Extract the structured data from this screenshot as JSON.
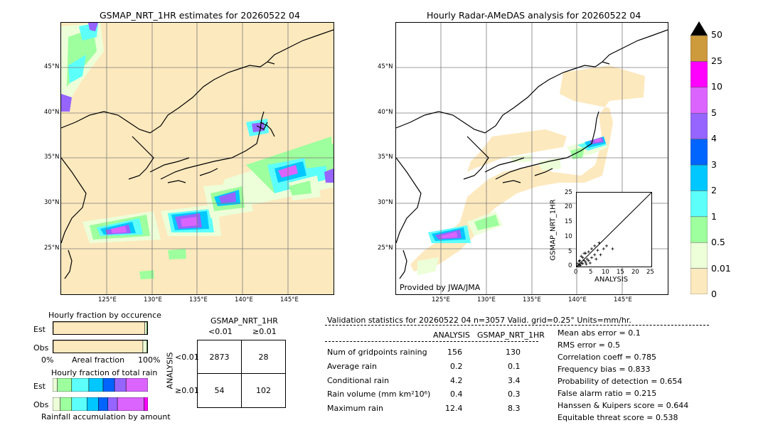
{
  "left_map": {
    "title": "GSMAP_NRT_1HR estimates for 20260522 04",
    "lat_labels": [
      "45°N",
      "40°N",
      "35°N",
      "30°N",
      "25°N"
    ],
    "lon_labels": [
      "125°E",
      "130°E",
      "135°E",
      "140°E",
      "145°E"
    ]
  },
  "right_map": {
    "title": "Hourly Radar-AMeDAS analysis for 20260522 04",
    "lat_labels": [
      "45°N",
      "40°N",
      "35°N",
      "30°N",
      "25°N"
    ],
    "lon_labels": [
      "125°E",
      "130°E",
      "135°E",
      "140°E",
      "145°E"
    ],
    "credit": "Provided by JWA/JMA"
  },
  "scatter_inset": {
    "xlabel": "ANALYSIS",
    "ylabel": "GSMAP_NRT_1HR",
    "ticks": [
      "0",
      "5",
      "10",
      "15",
      "20",
      "25"
    ]
  },
  "colorbar": {
    "levels": [
      "0",
      "0.01",
      "0.5",
      "1",
      "2",
      "3",
      "4",
      "5",
      "10",
      "25",
      "50"
    ],
    "colors": [
      "#fde9be",
      "#ecffd8",
      "#9dff9d",
      "#5dfffb",
      "#00c7ff",
      "#0064ff",
      "#9664ff",
      "#db64ff",
      "#ff00ff",
      "#cd9a3c"
    ],
    "extend_color": "#000000"
  },
  "occurrence": {
    "title": "Hourly fraction by occurence",
    "row_labels": [
      "Est",
      "Obs"
    ],
    "axis_left": "0%",
    "axis_mid": "Areal fraction",
    "axis_right": "100%"
  },
  "total_rain": {
    "title": "Hourly fraction of total rain",
    "row_labels": [
      "Est",
      "Obs"
    ],
    "footer": "Rainfall accumulation by amount"
  },
  "contingency": {
    "header": "GSMAP_NRT_1HR",
    "col_labels": [
      "<0.01",
      "≥0.01"
    ],
    "row_title": "ANALYSIS",
    "row_labels": [
      "<0.01",
      "≥0.01"
    ],
    "cells": [
      [
        "2873",
        "28"
      ],
      [
        "54",
        "102"
      ]
    ]
  },
  "validation": {
    "header": "Validation statistics for 20260522 04  n=3057 Valid. grid=0.25° Units=mm/hr.",
    "col_analysis": "ANALYSIS",
    "col_gsmap": "GSMAP_NRT_1HR",
    "rows": [
      {
        "label": "Num of gridpoints raining",
        "analysis": "156",
        "gsmap": "130"
      },
      {
        "label": "Average rain",
        "analysis": "0.2",
        "gsmap": "0.1"
      },
      {
        "label": "Conditional rain",
        "analysis": "4.2",
        "gsmap": "3.4"
      },
      {
        "label": "Rain volume (mm km²10⁶)",
        "analysis": "0.4",
        "gsmap": "0.3"
      },
      {
        "label": "Maximum rain",
        "analysis": "12.4",
        "gsmap": "8.3"
      }
    ],
    "scores": [
      "Mean abs error =    0.1",
      "RMS error =    0.5",
      "Correlation coeff =  0.785",
      "Frequency bias =  0.833",
      "Probability of detection =  0.654",
      "False alarm ratio =  0.215",
      "Hanssen & Kuipers score =  0.644",
      "Equitable threat score =  0.538"
    ]
  },
  "chart_data": [
    {
      "type": "heatmap",
      "title": "GSMAP_NRT_1HR estimates for 20260522 04",
      "lon_range": [
        120,
        150
      ],
      "lat_range": [
        20,
        50
      ],
      "units": "mm/hr"
    },
    {
      "type": "heatmap",
      "title": "Hourly Radar-AMeDAS analysis for 20260522 04",
      "lon_range": [
        120,
        150
      ],
      "lat_range": [
        20,
        50
      ],
      "units": "mm/hr"
    },
    {
      "type": "scatter",
      "xlabel": "ANALYSIS",
      "ylabel": "GSMAP_NRT_1HR",
      "xlim": [
        0,
        25
      ],
      "ylim": [
        0,
        25
      ],
      "points": [
        [
          0.5,
          0.3
        ],
        [
          1,
          0.6
        ],
        [
          1.5,
          1.2
        ],
        [
          2,
          1
        ],
        [
          2.5,
          2
        ],
        [
          3,
          1.5
        ],
        [
          3.5,
          2.5
        ],
        [
          1,
          2
        ],
        [
          2,
          3
        ],
        [
          4,
          2
        ],
        [
          5,
          3
        ],
        [
          6,
          4
        ],
        [
          7,
          5.5
        ],
        [
          8,
          4
        ],
        [
          9,
          6
        ],
        [
          5,
          6
        ],
        [
          3,
          4.5
        ],
        [
          4,
          5
        ],
        [
          6,
          7
        ],
        [
          1.5,
          3.5
        ],
        [
          2.5,
          4.5
        ],
        [
          0.3,
          1
        ],
        [
          0.8,
          1.8
        ],
        [
          1.2,
          0.4
        ],
        [
          3.2,
          0.8
        ],
        [
          4.5,
          1.2
        ],
        [
          6.5,
          2.5
        ],
        [
          12,
          6
        ],
        [
          10,
          7
        ],
        [
          7.5,
          8
        ]
      ]
    },
    {
      "type": "table",
      "title": "Validation statistics for 20260522 04  n=3057 Valid. grid=0.25° Units=mm/hr.",
      "columns": [
        "",
        "ANALYSIS",
        "GSMAP_NRT_1HR"
      ],
      "rows": [
        [
          "Num of gridpoints raining",
          156,
          130
        ],
        [
          "Average rain",
          0.2,
          0.1
        ],
        [
          "Conditional rain",
          4.2,
          3.4
        ],
        [
          "Rain volume (mm km²10⁶)",
          0.4,
          0.3
        ],
        [
          "Maximum rain",
          12.4,
          8.3
        ]
      ]
    },
    {
      "type": "bar",
      "title": "Hourly fraction by occurence",
      "categories": [
        "Est",
        "Obs"
      ],
      "series": [
        {
          "values": [
            0.96,
            0.94
          ]
        },
        {
          "values": [
            0.02,
            0.04
          ]
        },
        {
          "values": [
            0.01,
            0.01
          ]
        },
        {
          "values": [
            0.005,
            0.005
          ]
        },
        {
          "values": [
            0.005,
            0.005
          ]
        }
      ]
    },
    {
      "type": "bar",
      "title": "Hourly fraction of total rain",
      "categories": [
        "Est",
        "Obs"
      ],
      "series": [
        {
          "values": [
            0.05,
            0.08
          ]
        },
        {
          "values": [
            0.15,
            0.12
          ]
        },
        {
          "values": [
            0.18,
            0.16
          ]
        },
        {
          "values": [
            0.15,
            0.12
          ]
        },
        {
          "values": [
            0.12,
            0.1
          ]
        },
        {
          "values": [
            0.12,
            0.1
          ]
        },
        {
          "values": [
            0.23,
            0.28
          ]
        },
        {
          "values": [
            0.0,
            0.04
          ]
        }
      ]
    }
  ]
}
